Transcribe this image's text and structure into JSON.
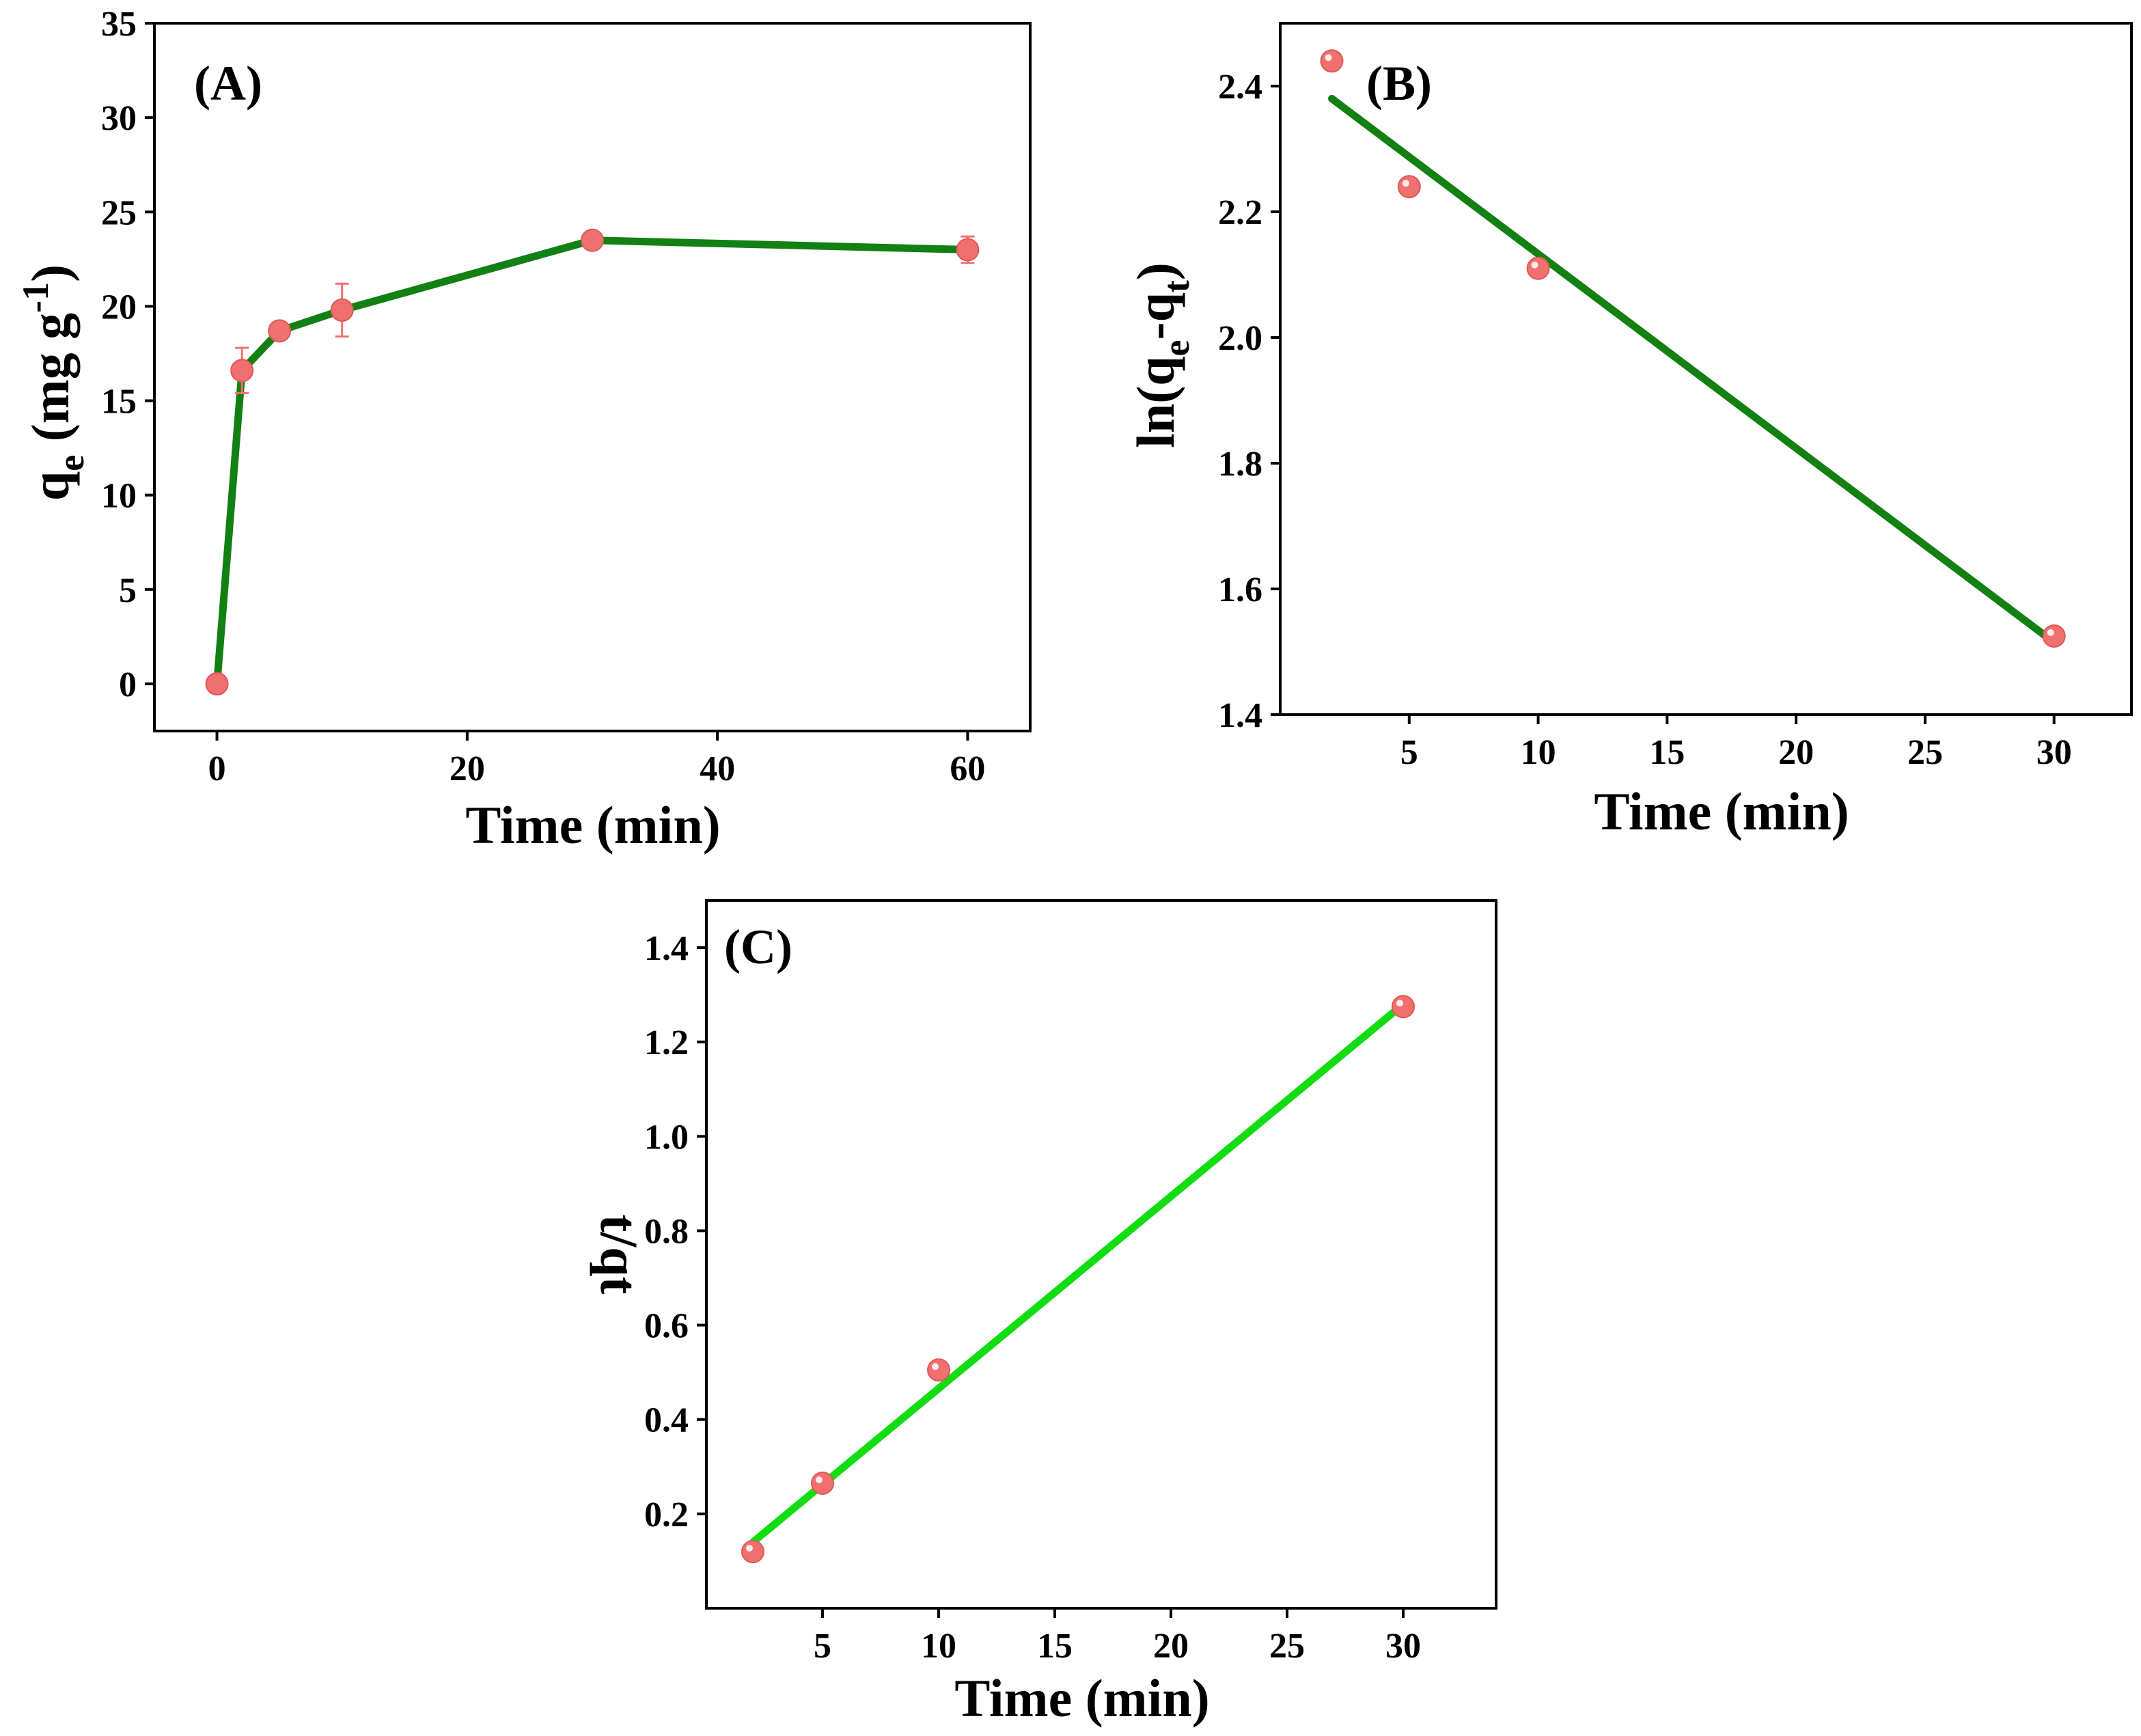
{
  "chart_data": [
    {
      "panel": "(A)",
      "type": "line",
      "title": "",
      "xlabel": "Time (min)",
      "ylabel_main": "q",
      "ylabel_sub": "e",
      "ylabel_rest": " (mg g",
      "ylabel_sup": "-1",
      "ylabel_close": ")",
      "xlim": [
        -5,
        65
      ],
      "ylim": [
        -2.5,
        35
      ],
      "xticks": [
        0,
        20,
        40,
        60
      ],
      "yticks": [
        0,
        5,
        10,
        15,
        20,
        25,
        30,
        35
      ],
      "x": [
        0,
        2,
        5,
        10,
        30,
        60
      ],
      "y": [
        0,
        16.6,
        18.7,
        19.8,
        23.5,
        23.0
      ],
      "yerr": [
        0,
        1.2,
        0,
        1.4,
        0,
        0.7
      ],
      "line_color": "#128012",
      "marker_color": "#f07070"
    },
    {
      "panel": "(B)",
      "type": "scatter",
      "title": "",
      "xlabel": "Time (min)",
      "ylabel_main": "ln(q",
      "ylabel_sub": "e",
      "ylabel_mid": "-q",
      "ylabel_sub2": "t",
      "ylabel_close": ")",
      "xlim": [
        0,
        33
      ],
      "ylim": [
        1.4,
        2.5
      ],
      "xticks": [
        5,
        10,
        15,
        20,
        25,
        30
      ],
      "yticks": [
        1.4,
        1.6,
        1.8,
        2.0,
        2.2,
        2.4
      ],
      "x": [
        2,
        5,
        10,
        30
      ],
      "y": [
        2.44,
        2.24,
        2.11,
        1.525
      ],
      "fit_x": [
        2,
        30
      ],
      "fit_y": [
        2.38,
        1.515
      ],
      "line_color": "#128012",
      "marker_color": "#f07070"
    },
    {
      "panel": "(C)",
      "type": "scatter",
      "title": "",
      "xlabel": "Time (min)",
      "ylabel": "t/qt",
      "xlim": [
        0,
        34
      ],
      "ylim": [
        0.0,
        1.5
      ],
      "xticks": [
        5,
        10,
        15,
        20,
        25,
        30
      ],
      "yticks": [
        0.2,
        0.4,
        0.6,
        0.8,
        1.0,
        1.2,
        1.4
      ],
      "x": [
        2,
        5,
        10,
        30
      ],
      "y": [
        0.12,
        0.265,
        0.505,
        1.275
      ],
      "fit_x": [
        2,
        30
      ],
      "fit_y": [
        0.14,
        1.28
      ],
      "line_color": "#11dd11",
      "marker_color": "#f07070"
    }
  ]
}
